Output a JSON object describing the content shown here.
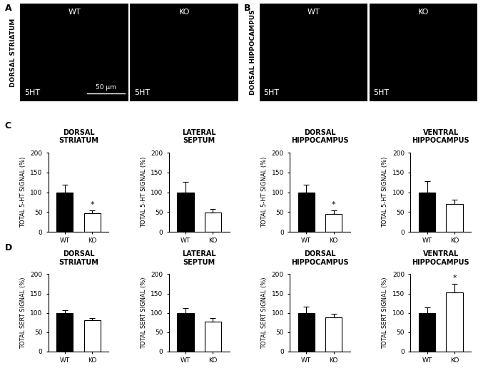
{
  "image_panels": [
    {
      "letter": "A",
      "region": "DORSAL STRIATUM",
      "scale_bar": "50 µm",
      "images": [
        {
          "label": "WT",
          "stain": "5HT"
        },
        {
          "label": "KO",
          "stain": "5HT"
        }
      ]
    },
    {
      "letter": "B",
      "region": "DORSAL HIPPOCAMPUS",
      "images": [
        {
          "label": "WT",
          "stain": "5HT"
        },
        {
          "label": "KO",
          "stain": "5HT"
        }
      ]
    }
  ],
  "chart_rows": [
    {
      "letter": "C"
    },
    {
      "letter": "D"
    }
  ],
  "chart_data": [
    {
      "type": "bar",
      "row": "C",
      "title": "DORSAL\nSTRIATUM",
      "y_label": "TOTAL 5-HT SIGNAL (%)",
      "categories": [
        "WT",
        "KO"
      ],
      "values": [
        100,
        47
      ],
      "errors": [
        20,
        8
      ],
      "colors": [
        "#000000",
        "#ffffff"
      ],
      "ylim": [
        0,
        200
      ],
      "yticks": [
        0,
        50,
        100,
        150,
        200
      ],
      "annotations": [
        {
          "category": "KO",
          "text": "*"
        }
      ]
    },
    {
      "type": "bar",
      "row": "C",
      "title": "LATERAL\nSEPTUM",
      "y_label": "TOTAL 5-HT SIGNAL (%)",
      "categories": [
        "WT",
        "KO"
      ],
      "values": [
        100,
        48
      ],
      "errors": [
        27,
        10
      ],
      "colors": [
        "#000000",
        "#ffffff"
      ],
      "ylim": [
        0,
        200
      ],
      "yticks": [
        0,
        50,
        100,
        150,
        200
      ]
    },
    {
      "type": "bar",
      "row": "C",
      "title": "DORSAL\nHIPPOCAMPUS",
      "y_label": "TOTAL 5-HT SIGNAL (%)",
      "categories": [
        "WT",
        "KO"
      ],
      "values": [
        100,
        46
      ],
      "errors": [
        20,
        8
      ],
      "colors": [
        "#000000",
        "#ffffff"
      ],
      "ylim": [
        0,
        200
      ],
      "yticks": [
        0,
        50,
        100,
        150,
        200
      ],
      "annotations": [
        {
          "category": "KO",
          "text": "*"
        }
      ]
    },
    {
      "type": "bar",
      "row": "C",
      "title": "VENTRAL\nHIPPOCAMPUS",
      "y_label": "TOTAL 5-HT SIGNAL (%)",
      "categories": [
        "WT",
        "KO"
      ],
      "values": [
        100,
        70
      ],
      "errors": [
        28,
        12
      ],
      "colors": [
        "#000000",
        "#ffffff"
      ],
      "ylim": [
        0,
        200
      ],
      "yticks": [
        0,
        50,
        100,
        150,
        200
      ]
    },
    {
      "type": "bar",
      "row": "D",
      "title": "DORSAL\nSTRIATUM",
      "y_label": "TOTAL SERT SIGNAL (%)",
      "categories": [
        "WT",
        "KO"
      ],
      "values": [
        100,
        80
      ],
      "errors": [
        7,
        7
      ],
      "colors": [
        "#000000",
        "#ffffff"
      ],
      "ylim": [
        0,
        200
      ],
      "yticks": [
        0,
        50,
        100,
        150,
        200
      ]
    },
    {
      "type": "bar",
      "row": "D",
      "title": "LATERAL\nSEPTUM",
      "y_label": "TOTAL SERT SIGNAL (%)",
      "categories": [
        "WT",
        "KO"
      ],
      "values": [
        100,
        78
      ],
      "errors": [
        13,
        9
      ],
      "colors": [
        "#000000",
        "#ffffff"
      ],
      "ylim": [
        0,
        200
      ],
      "yticks": [
        0,
        50,
        100,
        150,
        200
      ]
    },
    {
      "type": "bar",
      "row": "D",
      "title": "DORSAL\nHIPPOCAMPUS",
      "y_label": "TOTAL SERT SIGNAL (%)",
      "categories": [
        "WT",
        "KO"
      ],
      "values": [
        100,
        88
      ],
      "errors": [
        15,
        9
      ],
      "colors": [
        "#000000",
        "#ffffff"
      ],
      "ylim": [
        0,
        200
      ],
      "yticks": [
        0,
        50,
        100,
        150,
        200
      ]
    },
    {
      "type": "bar",
      "row": "D",
      "title": "VENTRAL\nHIPPOCAMPUS",
      "y_label": "TOTAL SERT SIGNAL (%)",
      "categories": [
        "WT",
        "KO"
      ],
      "values": [
        100,
        153
      ],
      "errors": [
        14,
        22
      ],
      "colors": [
        "#000000",
        "#ffffff"
      ],
      "ylim": [
        0,
        200
      ],
      "yticks": [
        0,
        50,
        100,
        150,
        200
      ],
      "annotations": [
        {
          "category": "KO",
          "text": "*"
        }
      ]
    }
  ]
}
